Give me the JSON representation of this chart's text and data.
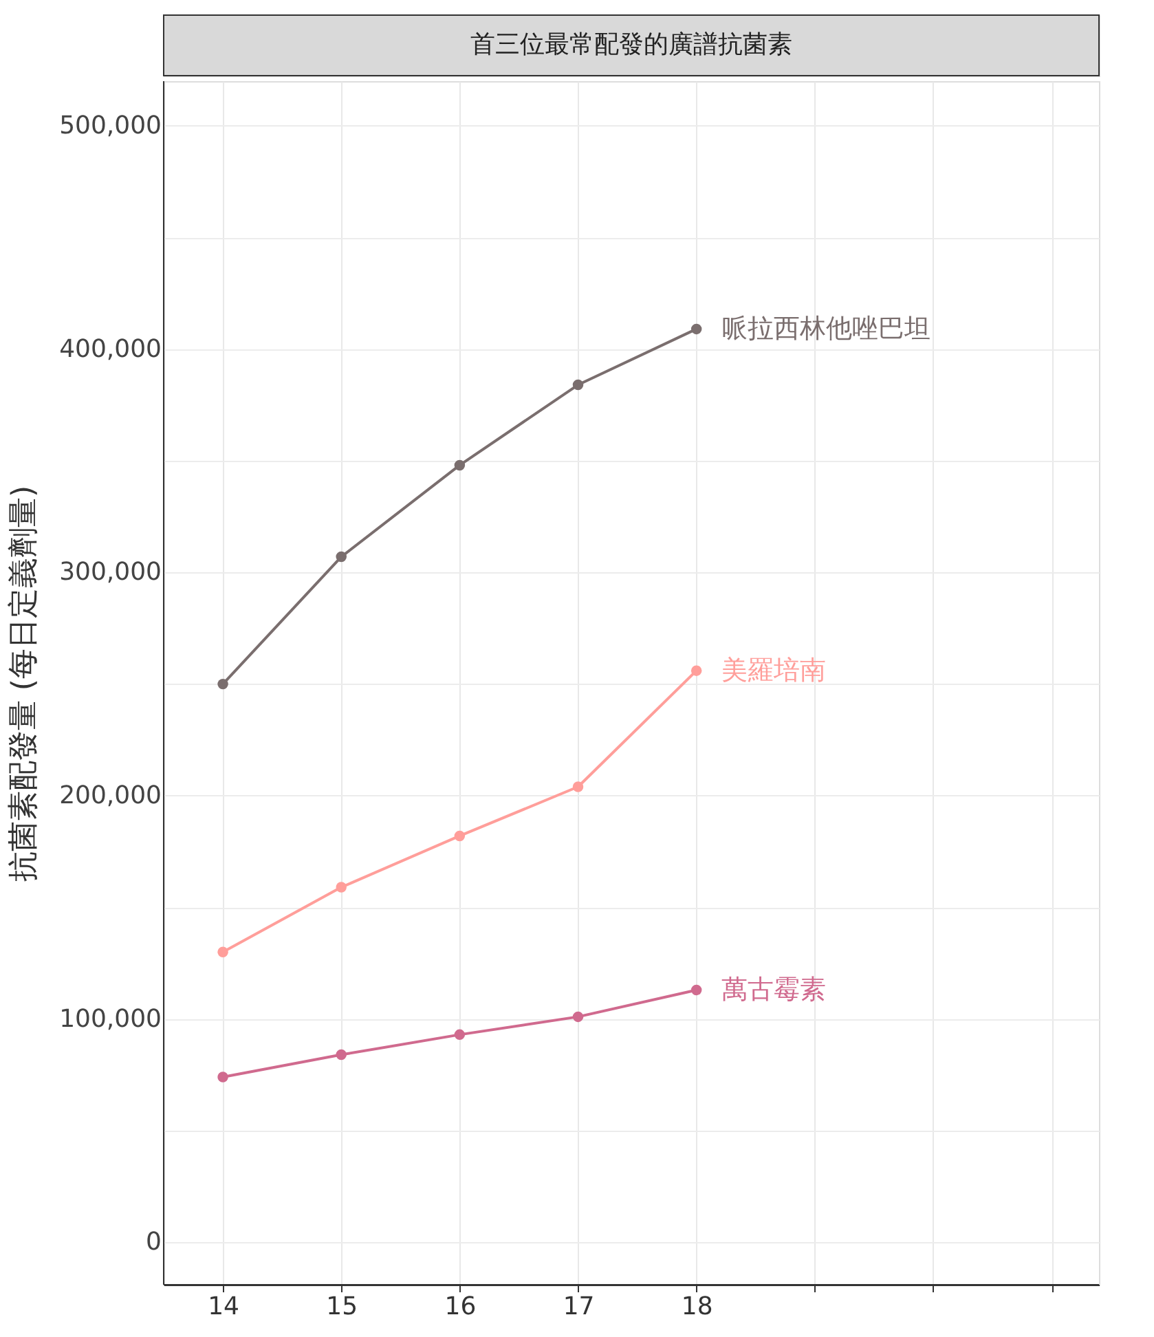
{
  "chart_data": {
    "type": "line",
    "title": "首三位最常配發的廣譜抗菌素",
    "ylabel": "抗菌素配發量 (每日定義劑量)",
    "x": [
      14,
      15,
      16,
      17,
      18
    ],
    "series": [
      {
        "name": "哌拉西林他唑巴坦",
        "color": "#7a6e6e",
        "values": [
          250000,
          307000,
          348000,
          384000,
          409000
        ]
      },
      {
        "name": "美羅培南",
        "color": "#ff9e9a",
        "values": [
          130000,
          159000,
          182000,
          204000,
          256000
        ]
      },
      {
        "name": "萬古霉素",
        "color": "#d06a8e",
        "values": [
          74000,
          84000,
          93000,
          101000,
          113000
        ]
      }
    ],
    "xlim": [
      13.5,
      21.4
    ],
    "xticks": [
      14,
      15,
      16,
      17,
      18,
      {
        "value": 19,
        "label": null
      },
      {
        "value": 20,
        "label": null
      },
      {
        "value": 21,
        "label": null
      }
    ],
    "ylim": [
      -19000,
      520000
    ],
    "yticks": [
      {
        "value": 0,
        "label": "0"
      },
      {
        "value": 50000,
        "label": null
      },
      {
        "value": 100000,
        "label": "100,000"
      },
      {
        "value": 150000,
        "label": null
      },
      {
        "value": 200000,
        "label": "200,000"
      },
      {
        "value": 250000,
        "label": null
      },
      {
        "value": 300000,
        "label": "300,000"
      },
      {
        "value": 350000,
        "label": null
      },
      {
        "value": 400000,
        "label": "400,000"
      },
      {
        "value": 450000,
        "label": null
      },
      {
        "value": 500000,
        "label": "500,000"
      }
    ],
    "grid": true,
    "marker": "circle",
    "legend": false
  }
}
